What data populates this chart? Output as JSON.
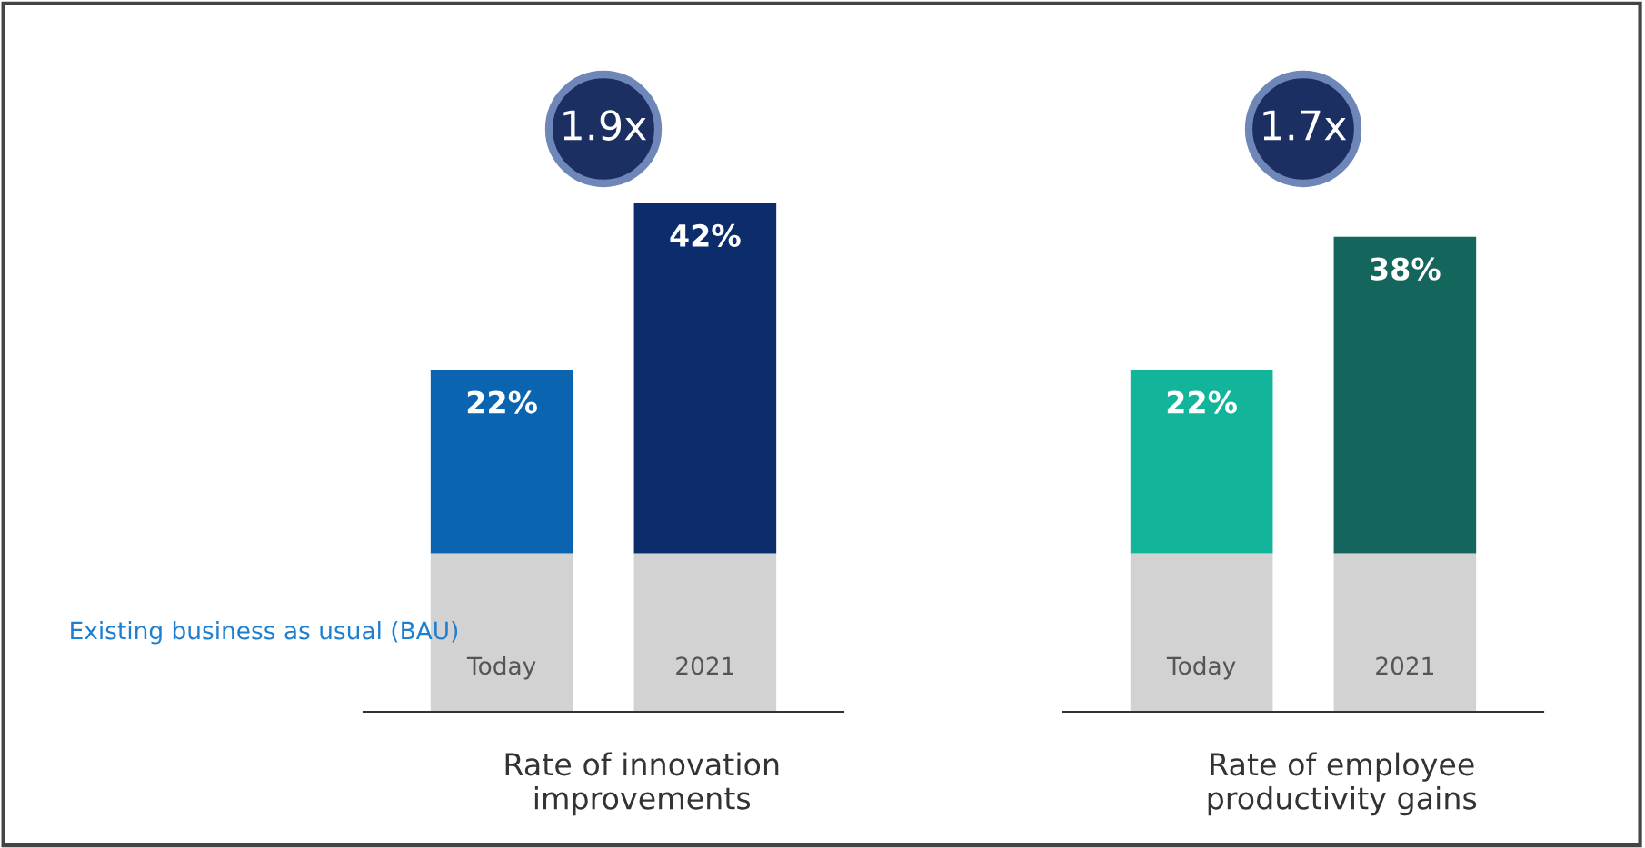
{
  "chart_data": [
    {
      "type": "bar",
      "stacked": true,
      "categories": [
        "Today",
        "2021"
      ],
      "tick_labels": "x",
      "xlabel": "Rate of innovation\nimprovements",
      "annotations": [
        "1.9x"
      ],
      "series": [
        {
          "name": "Existing business as usual (BAU)",
          "color": "#d3d2d2",
          "values": [
            19,
            19
          ]
        },
        {
          "colors": [
            "#0b64b0",
            "#0c2c6b"
          ],
          "values": [
            22,
            42
          ],
          "value_labels": [
            "22%",
            "42%"
          ]
        }
      ]
    },
    {
      "type": "bar",
      "stacked": true,
      "categories": [
        "Today",
        "2021"
      ],
      "tick_labels": "x",
      "xlabel": "Rate of employee\nproductivity gains",
      "annotations": [
        "1.7x"
      ],
      "series": [
        {
          "color": "#d3d2d2",
          "values": [
            19,
            19
          ]
        },
        {
          "colors": [
            "#12b59a",
            "#14665c"
          ],
          "values": [
            22,
            38
          ],
          "value_labels": [
            "22%",
            "38%"
          ]
        }
      ]
    }
  ]
}
